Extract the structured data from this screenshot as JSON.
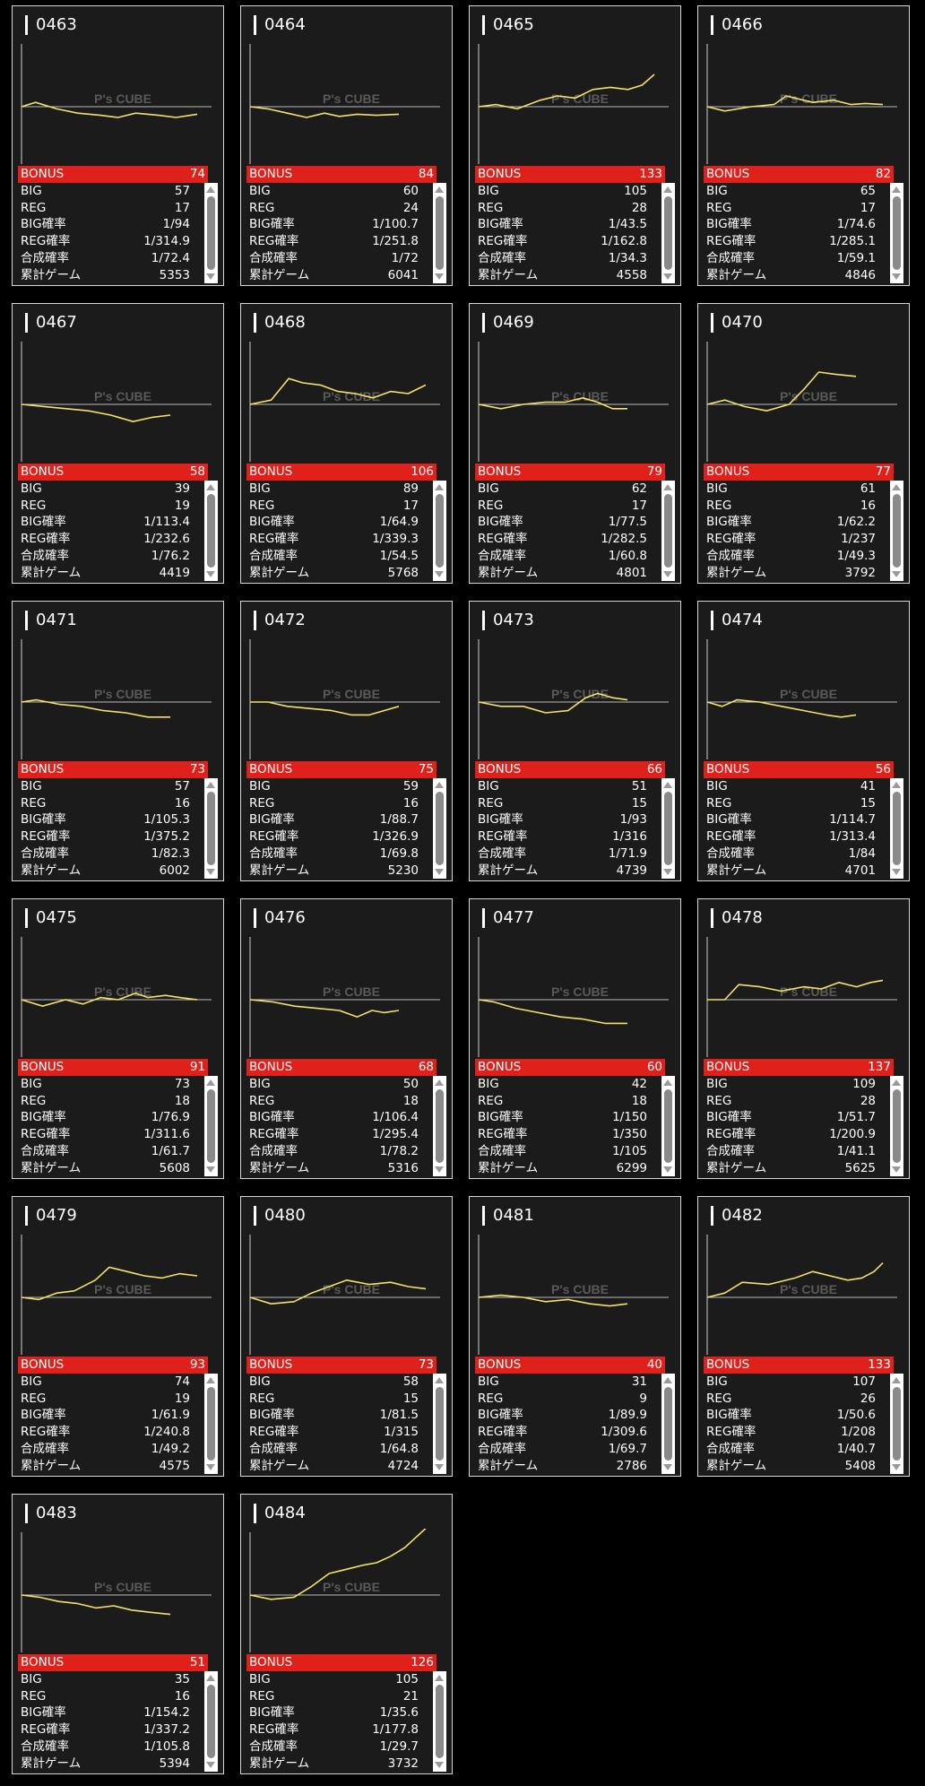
{
  "watermark": "P's CUBE",
  "stat_labels": {
    "bonus": "BONUS",
    "big": "BIG",
    "reg": "REG",
    "big_rate": "BIG確率",
    "reg_rate": "REG確率",
    "total_rate": "合成確率",
    "games": "累計ゲーム"
  },
  "colors": {
    "background": "#000000",
    "card": "#1b1b1b",
    "bonus_bar": "#e0201b",
    "graph_line": "#f2e26a",
    "baseline": "#bbbbbb"
  },
  "machines": [
    {
      "id": "0463",
      "bonus": "74",
      "big": "57",
      "reg": "17",
      "big_rate": "1/94",
      "reg_rate": "1/314.9",
      "total_rate": "1/72.4",
      "games": "5353",
      "graph": [
        [
          0,
          0
        ],
        [
          0.08,
          4
        ],
        [
          0.2,
          -2
        ],
        [
          0.32,
          -6
        ],
        [
          0.45,
          -8
        ],
        [
          0.55,
          -10
        ],
        [
          0.65,
          -6
        ],
        [
          0.78,
          -8
        ],
        [
          0.88,
          -10
        ],
        [
          1,
          -7
        ]
      ]
    },
    {
      "id": "0464",
      "bonus": "84",
      "big": "60",
      "reg": "24",
      "big_rate": "1/100.7",
      "reg_rate": "1/251.8",
      "total_rate": "1/72",
      "games": "6041",
      "graph": [
        [
          0,
          0
        ],
        [
          0.12,
          -2
        ],
        [
          0.25,
          -6
        ],
        [
          0.38,
          -10
        ],
        [
          0.5,
          -6
        ],
        [
          0.6,
          -9
        ],
        [
          0.72,
          -7
        ],
        [
          0.85,
          -8
        ],
        [
          1,
          -7
        ]
      ]
    },
    {
      "id": "0465",
      "bonus": "133",
      "big": "105",
      "reg": "28",
      "big_rate": "1/43.5",
      "reg_rate": "1/162.8",
      "total_rate": "1/34.3",
      "games": "4558",
      "graph": [
        [
          0,
          0
        ],
        [
          0.1,
          2
        ],
        [
          0.22,
          -2
        ],
        [
          0.35,
          6
        ],
        [
          0.45,
          10
        ],
        [
          0.55,
          8
        ],
        [
          0.65,
          16
        ],
        [
          0.75,
          18
        ],
        [
          0.85,
          16
        ],
        [
          0.93,
          20
        ],
        [
          1,
          30
        ]
      ]
    },
    {
      "id": "0466",
      "bonus": "82",
      "big": "65",
      "reg": "17",
      "big_rate": "1/74.6",
      "reg_rate": "1/285.1",
      "total_rate": "1/59.1",
      "games": "4846",
      "graph": [
        [
          0,
          0
        ],
        [
          0.1,
          -4
        ],
        [
          0.25,
          0
        ],
        [
          0.38,
          2
        ],
        [
          0.45,
          10
        ],
        [
          0.6,
          4
        ],
        [
          0.72,
          6
        ],
        [
          0.82,
          2
        ],
        [
          0.9,
          3
        ],
        [
          1,
          2
        ]
      ]
    },
    {
      "id": "0467",
      "bonus": "58",
      "big": "39",
      "reg": "19",
      "big_rate": "1/113.4",
      "reg_rate": "1/232.6",
      "total_rate": "1/76.2",
      "games": "4419",
      "graph": [
        [
          0,
          0
        ],
        [
          0.15,
          -2
        ],
        [
          0.3,
          -4
        ],
        [
          0.45,
          -6
        ],
        [
          0.6,
          -10
        ],
        [
          0.75,
          -16
        ],
        [
          0.88,
          -12
        ],
        [
          1,
          -10
        ]
      ]
    },
    {
      "id": "0468",
      "bonus": "106",
      "big": "89",
      "reg": "17",
      "big_rate": "1/64.9",
      "reg_rate": "1/339.3",
      "total_rate": "1/54.5",
      "games": "5768",
      "graph": [
        [
          0,
          0
        ],
        [
          0.12,
          4
        ],
        [
          0.22,
          24
        ],
        [
          0.3,
          20
        ],
        [
          0.4,
          18
        ],
        [
          0.5,
          12
        ],
        [
          0.6,
          10
        ],
        [
          0.7,
          6
        ],
        [
          0.8,
          12
        ],
        [
          0.9,
          10
        ],
        [
          1,
          18
        ]
      ]
    },
    {
      "id": "0469",
      "bonus": "79",
      "big": "62",
      "reg": "17",
      "big_rate": "1/77.5",
      "reg_rate": "1/282.5",
      "total_rate": "1/60.8",
      "games": "4801",
      "graph": [
        [
          0,
          0
        ],
        [
          0.15,
          -4
        ],
        [
          0.3,
          0
        ],
        [
          0.45,
          2
        ],
        [
          0.58,
          2
        ],
        [
          0.7,
          6
        ],
        [
          0.8,
          2
        ],
        [
          0.9,
          -4
        ],
        [
          1,
          -4
        ]
      ]
    },
    {
      "id": "0470",
      "bonus": "77",
      "big": "61",
      "reg": "16",
      "big_rate": "1/62.2",
      "reg_rate": "1/237",
      "total_rate": "1/49.3",
      "games": "3792",
      "graph": [
        [
          0,
          0
        ],
        [
          0.12,
          4
        ],
        [
          0.25,
          -2
        ],
        [
          0.4,
          -6
        ],
        [
          0.55,
          0
        ],
        [
          0.65,
          14
        ],
        [
          0.75,
          30
        ],
        [
          0.86,
          28
        ],
        [
          1,
          26
        ]
      ]
    },
    {
      "id": "0471",
      "bonus": "73",
      "big": "57",
      "reg": "16",
      "big_rate": "1/105.3",
      "reg_rate": "1/375.2",
      "total_rate": "1/82.3",
      "games": "6002",
      "graph": [
        [
          0,
          0
        ],
        [
          0.1,
          2
        ],
        [
          0.25,
          -2
        ],
        [
          0.4,
          -4
        ],
        [
          0.55,
          -8
        ],
        [
          0.7,
          -10
        ],
        [
          0.85,
          -14
        ],
        [
          1,
          -14
        ]
      ]
    },
    {
      "id": "0472",
      "bonus": "75",
      "big": "59",
      "reg": "16",
      "big_rate": "1/88.7",
      "reg_rate": "1/326.9",
      "total_rate": "1/69.8",
      "games": "5230",
      "graph": [
        [
          0,
          0
        ],
        [
          0.12,
          0
        ],
        [
          0.25,
          -4
        ],
        [
          0.4,
          -6
        ],
        [
          0.55,
          -8
        ],
        [
          0.68,
          -12
        ],
        [
          0.8,
          -12
        ],
        [
          0.9,
          -8
        ],
        [
          1,
          -4
        ]
      ]
    },
    {
      "id": "0473",
      "bonus": "66",
      "big": "51",
      "reg": "15",
      "big_rate": "1/93",
      "reg_rate": "1/316",
      "total_rate": "1/71.9",
      "games": "4739",
      "graph": [
        [
          0,
          0
        ],
        [
          0.15,
          -4
        ],
        [
          0.3,
          -4
        ],
        [
          0.45,
          -10
        ],
        [
          0.6,
          -8
        ],
        [
          0.72,
          4
        ],
        [
          0.8,
          8
        ],
        [
          0.9,
          4
        ],
        [
          1,
          2
        ]
      ]
    },
    {
      "id": "0474",
      "bonus": "56",
      "big": "41",
      "reg": "15",
      "big_rate": "1/114.7",
      "reg_rate": "1/313.4",
      "total_rate": "1/84",
      "games": "4701",
      "graph": [
        [
          0,
          0
        ],
        [
          0.1,
          -4
        ],
        [
          0.2,
          2
        ],
        [
          0.35,
          0
        ],
        [
          0.5,
          -4
        ],
        [
          0.65,
          -8
        ],
        [
          0.8,
          -12
        ],
        [
          0.9,
          -14
        ],
        [
          1,
          -12
        ]
      ]
    },
    {
      "id": "0475",
      "bonus": "91",
      "big": "73",
      "reg": "18",
      "big_rate": "1/76.9",
      "reg_rate": "1/311.6",
      "total_rate": "1/61.7",
      "games": "5608",
      "graph": [
        [
          0,
          0
        ],
        [
          0.12,
          -6
        ],
        [
          0.25,
          0
        ],
        [
          0.35,
          -4
        ],
        [
          0.45,
          2
        ],
        [
          0.55,
          0
        ],
        [
          0.65,
          6
        ],
        [
          0.72,
          2
        ],
        [
          0.82,
          4
        ],
        [
          0.9,
          2
        ],
        [
          1,
          0
        ]
      ]
    },
    {
      "id": "0476",
      "bonus": "68",
      "big": "50",
      "reg": "18",
      "big_rate": "1/106.4",
      "reg_rate": "1/295.4",
      "total_rate": "1/78.2",
      "games": "5316",
      "graph": [
        [
          0,
          0
        ],
        [
          0.15,
          -2
        ],
        [
          0.3,
          -6
        ],
        [
          0.45,
          -8
        ],
        [
          0.6,
          -10
        ],
        [
          0.72,
          -16
        ],
        [
          0.82,
          -10
        ],
        [
          0.9,
          -12
        ],
        [
          1,
          -10
        ]
      ]
    },
    {
      "id": "0477",
      "bonus": "60",
      "big": "42",
      "reg": "18",
      "big_rate": "1/150",
      "reg_rate": "1/350",
      "total_rate": "1/105",
      "games": "6299",
      "graph": [
        [
          0,
          0
        ],
        [
          0.1,
          -2
        ],
        [
          0.25,
          -8
        ],
        [
          0.4,
          -12
        ],
        [
          0.55,
          -16
        ],
        [
          0.7,
          -18
        ],
        [
          0.85,
          -22
        ],
        [
          1,
          -22
        ]
      ]
    },
    {
      "id": "0478",
      "bonus": "137",
      "big": "109",
      "reg": "28",
      "big_rate": "1/51.7",
      "reg_rate": "1/200.9",
      "total_rate": "1/41.1",
      "games": "5625",
      "graph": [
        [
          0,
          0
        ],
        [
          0.1,
          0
        ],
        [
          0.18,
          14
        ],
        [
          0.3,
          12
        ],
        [
          0.42,
          8
        ],
        [
          0.55,
          12
        ],
        [
          0.65,
          10
        ],
        [
          0.75,
          16
        ],
        [
          0.85,
          12
        ],
        [
          0.93,
          16
        ],
        [
          1,
          18
        ]
      ]
    },
    {
      "id": "0479",
      "bonus": "93",
      "big": "74",
      "reg": "19",
      "big_rate": "1/61.9",
      "reg_rate": "1/240.8",
      "total_rate": "1/49.2",
      "games": "4575",
      "graph": [
        [
          0,
          0
        ],
        [
          0.1,
          -2
        ],
        [
          0.2,
          4
        ],
        [
          0.3,
          6
        ],
        [
          0.42,
          16
        ],
        [
          0.5,
          28
        ],
        [
          0.6,
          24
        ],
        [
          0.7,
          20
        ],
        [
          0.8,
          18
        ],
        [
          0.9,
          22
        ],
        [
          1,
          20
        ]
      ]
    },
    {
      "id": "0480",
      "bonus": "73",
      "big": "58",
      "reg": "15",
      "big_rate": "1/81.5",
      "reg_rate": "1/315",
      "total_rate": "1/64.8",
      "games": "4724",
      "graph": [
        [
          0,
          0
        ],
        [
          0.12,
          -6
        ],
        [
          0.25,
          -4
        ],
        [
          0.35,
          4
        ],
        [
          0.45,
          10
        ],
        [
          0.55,
          16
        ],
        [
          0.68,
          12
        ],
        [
          0.8,
          14
        ],
        [
          0.9,
          10
        ],
        [
          1,
          8
        ]
      ]
    },
    {
      "id": "0481",
      "bonus": "40",
      "big": "31",
      "reg": "9",
      "big_rate": "1/89.9",
      "reg_rate": "1/309.6",
      "total_rate": "1/69.7",
      "games": "2786",
      "graph": [
        [
          0,
          0
        ],
        [
          0.15,
          2
        ],
        [
          0.3,
          0
        ],
        [
          0.45,
          -4
        ],
        [
          0.6,
          -2
        ],
        [
          0.75,
          -6
        ],
        [
          0.88,
          -8
        ],
        [
          1,
          -6
        ]
      ]
    },
    {
      "id": "0482",
      "bonus": "133",
      "big": "107",
      "reg": "26",
      "big_rate": "1/50.6",
      "reg_rate": "1/208",
      "total_rate": "1/40.7",
      "games": "5408",
      "graph": [
        [
          0,
          0
        ],
        [
          0.1,
          4
        ],
        [
          0.2,
          14
        ],
        [
          0.35,
          12
        ],
        [
          0.5,
          18
        ],
        [
          0.6,
          24
        ],
        [
          0.7,
          20
        ],
        [
          0.8,
          16
        ],
        [
          0.88,
          18
        ],
        [
          0.95,
          24
        ],
        [
          1,
          32
        ]
      ]
    },
    {
      "id": "0483",
      "bonus": "51",
      "big": "35",
      "reg": "16",
      "big_rate": "1/154.2",
      "reg_rate": "1/337.2",
      "total_rate": "1/105.8",
      "games": "5394",
      "graph": [
        [
          0,
          0
        ],
        [
          0.12,
          -2
        ],
        [
          0.25,
          -6
        ],
        [
          0.38,
          -8
        ],
        [
          0.5,
          -12
        ],
        [
          0.62,
          -10
        ],
        [
          0.74,
          -14
        ],
        [
          0.86,
          -16
        ],
        [
          1,
          -18
        ]
      ]
    },
    {
      "id": "0484",
      "bonus": "126",
      "big": "105",
      "reg": "21",
      "big_rate": "1/35.6",
      "reg_rate": "1/177.8",
      "total_rate": "1/29.7",
      "games": "3732",
      "graph": [
        [
          0,
          0
        ],
        [
          0.12,
          -4
        ],
        [
          0.25,
          -2
        ],
        [
          0.35,
          8
        ],
        [
          0.45,
          20
        ],
        [
          0.55,
          24
        ],
        [
          0.65,
          28
        ],
        [
          0.72,
          30
        ],
        [
          0.8,
          36
        ],
        [
          0.88,
          44
        ],
        [
          1,
          62
        ]
      ]
    }
  ]
}
